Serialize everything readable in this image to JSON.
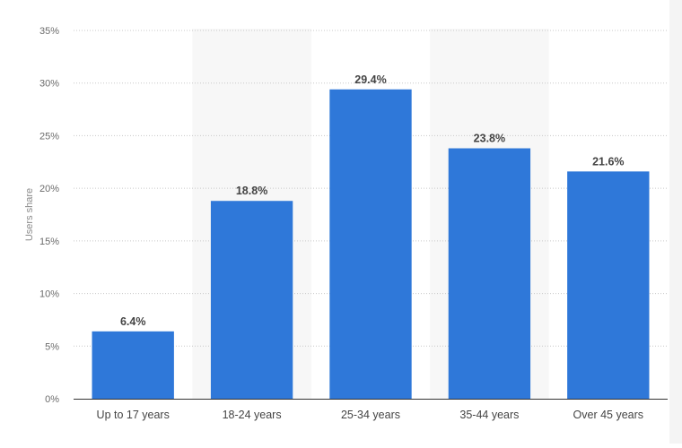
{
  "chart_data": {
    "type": "bar",
    "title": "",
    "xlabel": "",
    "ylabel": "Users share",
    "categories": [
      "Up to 17 years",
      "18-24 years",
      "25-34 years",
      "35-44 years",
      "Over 45 years"
    ],
    "values": [
      6.4,
      18.8,
      29.4,
      23.8,
      21.6
    ],
    "data_labels": [
      "6.4%",
      "18.8%",
      "29.4%",
      "23.8%",
      "21.6%"
    ],
    "ylim": [
      0,
      35
    ],
    "yticks": [
      0,
      5,
      10,
      15,
      20,
      25,
      30,
      35
    ],
    "ytick_labels": [
      "0%",
      "5%",
      "10%",
      "15%",
      "20%",
      "25%",
      "30%",
      "35%"
    ],
    "grid": true,
    "bar_color": "#2f78d9",
    "alternating_band_color": "#f7f7f7",
    "legend": "none"
  }
}
